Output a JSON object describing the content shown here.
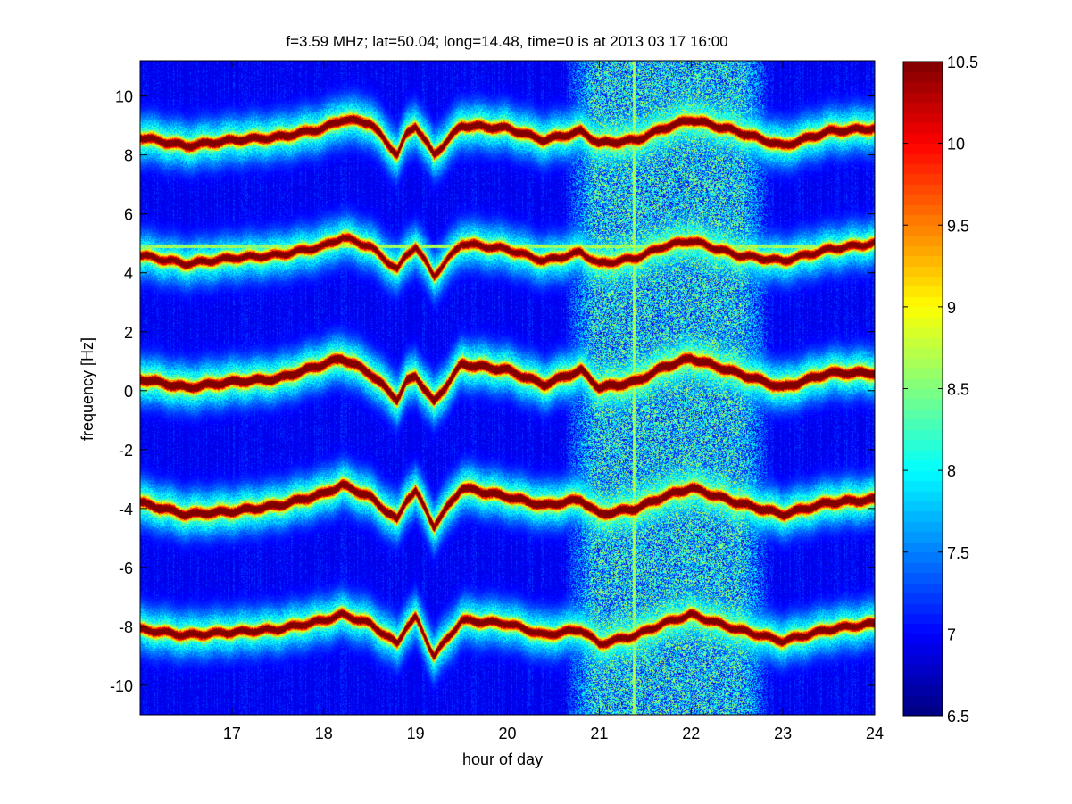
{
  "chart_data": {
    "type": "heatmap",
    "title": "f=3.59 MHz;  lat=50.04; long=14.48, time=0 is at 2013 03 17 16:00",
    "xlabel": "hour of day",
    "ylabel": "frequency [Hz]",
    "xlim": [
      16.0,
      24.0
    ],
    "ylim": [
      -11.0,
      11.2
    ],
    "x_ticks": [
      {
        "value": 17,
        "label": "17"
      },
      {
        "value": 18,
        "label": "18"
      },
      {
        "value": 19,
        "label": "19"
      },
      {
        "value": 20,
        "label": "20"
      },
      {
        "value": 21,
        "label": "21"
      },
      {
        "value": 22,
        "label": "22"
      },
      {
        "value": 23,
        "label": "23"
      },
      {
        "value": 24,
        "label": "24"
      }
    ],
    "y_ticks": [
      {
        "value": 10,
        "label": "10"
      },
      {
        "value": 8,
        "label": "8"
      },
      {
        "value": 6,
        "label": "6"
      },
      {
        "value": 4,
        "label": "4"
      },
      {
        "value": 2,
        "label": "2"
      },
      {
        "value": 0,
        "label": "0"
      },
      {
        "value": -2,
        "label": "-2"
      },
      {
        "value": -4,
        "label": "-4"
      },
      {
        "value": -6,
        "label": "-6"
      },
      {
        "value": -8,
        "label": "-8"
      },
      {
        "value": -10,
        "label": "-10"
      }
    ],
    "colorbar": {
      "range": [
        6.5,
        10.5
      ],
      "colormap": "jet",
      "ticks": [
        {
          "value": 10.5,
          "label": "10.5"
        },
        {
          "value": 10,
          "label": "10"
        },
        {
          "value": 9.5,
          "label": "9.5"
        },
        {
          "value": 9,
          "label": "9"
        },
        {
          "value": 8.5,
          "label": "8.5"
        },
        {
          "value": 8,
          "label": "8"
        },
        {
          "value": 7.5,
          "label": "7.5"
        },
        {
          "value": 7,
          "label": "7"
        },
        {
          "value": 6.5,
          "label": "6.5"
        }
      ]
    },
    "background_level": 6.9,
    "noisy_region": {
      "x_start": 20.6,
      "x_end": 22.9
    },
    "horizontal_line": {
      "y": 4.9,
      "x_start": 16.0,
      "x_end": 24.0
    },
    "vertical_line": {
      "x": 21.38
    },
    "traces": [
      {
        "name": "",
        "x": [
          16.0,
          16.5,
          17.0,
          17.5,
          18.0,
          18.2,
          18.5,
          18.8,
          18.9,
          19.0,
          19.2,
          19.5,
          20.0,
          20.4,
          20.8,
          21.0,
          21.4,
          21.7,
          22.0,
          22.5,
          23.0,
          23.5,
          24.0
        ],
        "y": [
          0.4,
          0.1,
          0.3,
          0.4,
          0.9,
          1.1,
          0.6,
          -0.3,
          0.3,
          0.5,
          -0.4,
          0.9,
          0.7,
          0.2,
          0.7,
          0.1,
          0.3,
          0.8,
          1.1,
          0.6,
          0.1,
          0.6,
          0.6
        ],
        "peak": 10.2
      },
      {
        "name": "",
        "x": [
          16.0,
          16.5,
          17.0,
          17.5,
          18.0,
          18.2,
          18.5,
          18.8,
          18.9,
          19.0,
          19.2,
          19.5,
          20.0,
          20.4,
          20.8,
          21.0,
          21.4,
          21.7,
          22.0,
          22.5,
          23.0,
          23.5,
          24.0
        ],
        "y": [
          8.6,
          8.3,
          8.5,
          8.6,
          8.9,
          9.2,
          9.1,
          8.0,
          8.7,
          9.0,
          8.0,
          9.0,
          8.9,
          8.5,
          8.8,
          8.4,
          8.5,
          8.9,
          9.2,
          8.8,
          8.3,
          8.8,
          8.9
        ],
        "peak": 10.0
      },
      {
        "name": "",
        "x": [
          16.0,
          16.5,
          17.0,
          17.5,
          18.0,
          18.2,
          18.5,
          18.8,
          18.9,
          19.0,
          19.2,
          19.5,
          20.0,
          20.4,
          20.8,
          21.0,
          21.4,
          21.7,
          22.0,
          22.5,
          23.0,
          23.5,
          24.0
        ],
        "y": [
          4.6,
          4.3,
          4.5,
          4.6,
          4.9,
          5.2,
          4.9,
          4.1,
          4.6,
          4.9,
          3.9,
          5.0,
          4.8,
          4.4,
          4.7,
          4.3,
          4.5,
          4.9,
          5.1,
          4.6,
          4.4,
          4.8,
          5.0
        ],
        "peak": 9.8
      },
      {
        "name": "",
        "x": [
          16.0,
          16.5,
          17.0,
          17.5,
          18.0,
          18.2,
          18.5,
          18.8,
          18.9,
          19.0,
          19.2,
          19.5,
          20.0,
          20.4,
          20.8,
          21.0,
          21.4,
          21.7,
          22.0,
          22.5,
          23.0,
          23.5,
          24.0
        ],
        "y": [
          -3.8,
          -4.2,
          -4.1,
          -3.9,
          -3.5,
          -3.2,
          -3.6,
          -4.4,
          -3.7,
          -3.4,
          -4.6,
          -3.3,
          -3.6,
          -3.9,
          -3.7,
          -4.2,
          -4.0,
          -3.6,
          -3.3,
          -3.8,
          -4.2,
          -3.8,
          -3.7
        ],
        "peak": 10.1
      },
      {
        "name": "",
        "x": [
          16.0,
          16.5,
          17.0,
          17.5,
          18.0,
          18.2,
          18.5,
          18.8,
          18.9,
          19.0,
          19.2,
          19.5,
          20.0,
          20.4,
          20.8,
          21.0,
          21.4,
          21.7,
          22.0,
          22.5,
          23.0,
          23.5,
          24.0
        ],
        "y": [
          -8.1,
          -8.3,
          -8.2,
          -8.1,
          -7.8,
          -7.6,
          -7.9,
          -8.6,
          -8.0,
          -7.7,
          -9.0,
          -7.8,
          -7.9,
          -8.3,
          -8.1,
          -8.6,
          -8.3,
          -7.9,
          -7.6,
          -8.1,
          -8.5,
          -8.1,
          -7.9
        ],
        "peak": 9.9
      }
    ]
  }
}
